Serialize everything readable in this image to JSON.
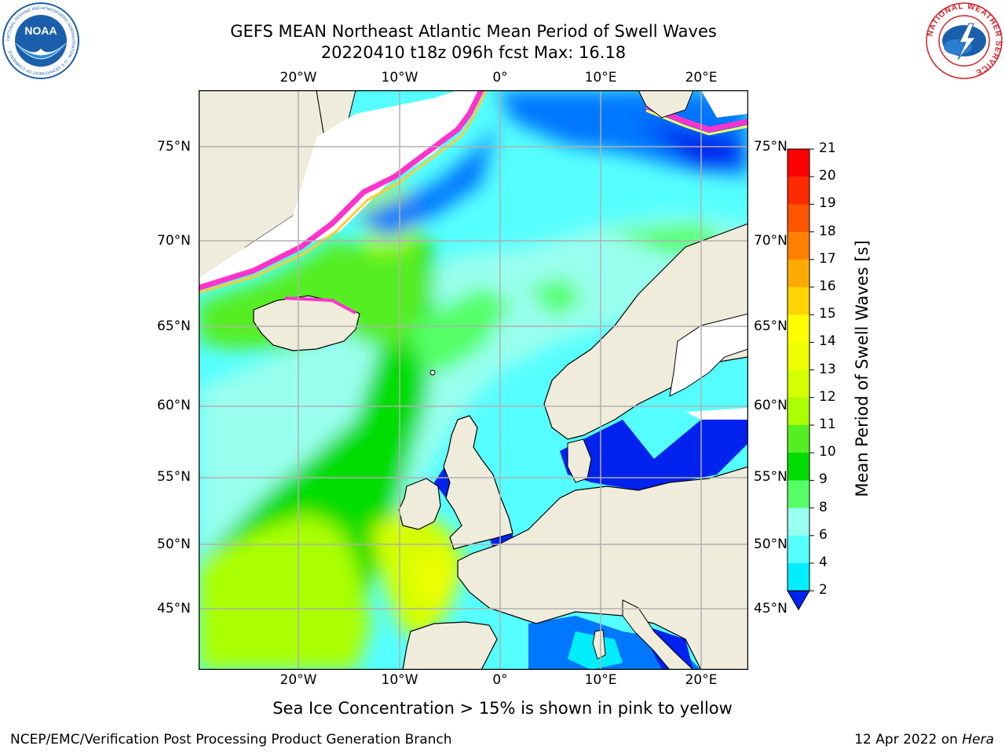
{
  "header": {
    "title_line1": "GEFS MEAN Northeast Atlantic Mean Period of Swell Waves",
    "title_line2": "20220410 t18z 096h fcst   Max: 16.18"
  },
  "logos": {
    "left": {
      "text": "NOAA",
      "ring_text": "NATIONAL OCEANIC AND ATMOSPHERIC ADMINISTRATION · U.S. DEPARTMENT OF COMMERCE",
      "color": "#1b5eab"
    },
    "right": {
      "ring_text": "NATIONAL WEATHER SERVICE",
      "color": "#d2232a"
    }
  },
  "map": {
    "lon_labels": [
      "20°W",
      "10°W",
      "0°",
      "10°E",
      "20°E"
    ],
    "lat_labels": [
      "75°N",
      "70°N",
      "65°N",
      "60°N",
      "55°N",
      "50°N",
      "45°N"
    ],
    "land_color": "#efecdc",
    "ice_colors": [
      "#ff33cc",
      "#ffcc33",
      "#ffff66"
    ]
  },
  "colorbar": {
    "label": "Mean Period of Swell Waves [s]",
    "ticks": [
      "21",
      "20",
      "19",
      "18",
      "17",
      "16",
      "15",
      "14",
      "13",
      "12",
      "11",
      "10",
      "9",
      "8",
      "6",
      "4",
      "2"
    ],
    "colors": [
      "#ff0000",
      "#ff2a00",
      "#ff5500",
      "#ff8000",
      "#ffaa00",
      "#ffd400",
      "#ffff00",
      "#eeff00",
      "#d4ff00",
      "#aaff00",
      "#55ee22",
      "#00dd00",
      "#55ff66",
      "#99ffee",
      "#55ffff",
      "#00eeff",
      "#0077ff",
      "#0022ee"
    ]
  },
  "annotation": "Sea Ice Concentration > 15% is shown in pink to yellow",
  "footer": {
    "left": "NCEP/EMC/Verification Post Processing Product Generation Branch",
    "date": "12 Apr 2022 on ",
    "host": "Hera"
  }
}
